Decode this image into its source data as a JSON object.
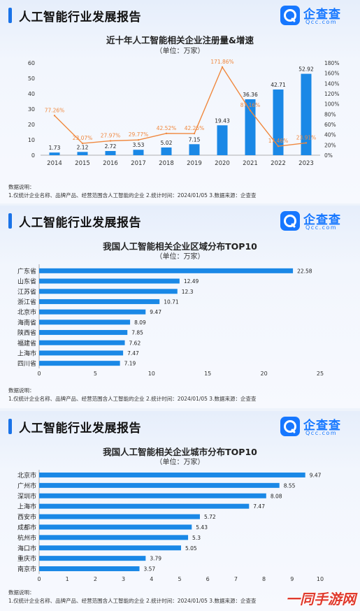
{
  "report_title": "人工智能行业发展报告",
  "logo": {
    "name": "企查查",
    "domain": "Qcc.com"
  },
  "notes": {
    "heading": "数据说明：",
    "line": "1.仅统计企业名称、品牌产品、经营范围含人工智能的企业  2.统计时间：2024/01/05   3.数据来源：企查查"
  },
  "watermark": "一同手游网",
  "colors": {
    "bar": "#1a88e6",
    "line": "#f0883e",
    "accent": "#1677ff"
  },
  "chart_data": [
    {
      "type": "bar+line",
      "title": "近十年人工智能相关企业注册量&增速",
      "unit": "（单位：万家）",
      "categories": [
        "2014",
        "2015",
        "2016",
        "2017",
        "2018",
        "2019",
        "2020",
        "2021",
        "2022",
        "2023"
      ],
      "series": [
        {
          "type": "bar",
          "values": [
            1.73,
            2.12,
            2.72,
            3.53,
            5.02,
            7.15,
            19.43,
            36.36,
            42.71,
            52.92
          ],
          "axis": "left"
        },
        {
          "type": "line",
          "values": [
            77.26,
            23.07,
            27.97,
            29.77,
            42.52,
            42.25,
            171.86,
            87.16,
            17.46,
            23.91
          ],
          "labels": [
            "77.26%",
            "23.07%",
            "27.97%",
            "29.77%",
            "42.52%",
            "42.25%",
            "171.86%",
            "87.16%",
            "17.46%",
            "23.91%"
          ],
          "axis": "right"
        }
      ],
      "ylim": [
        0,
        60
      ],
      "yticks": [
        "0",
        "10",
        "20",
        "30",
        "40",
        "50",
        "60"
      ],
      "y2lim": [
        0,
        180
      ],
      "y2ticks": [
        "0%",
        "20%",
        "40%",
        "60%",
        "80%",
        "100%",
        "120%",
        "140%",
        "160%",
        "180%"
      ]
    },
    {
      "type": "bar",
      "orientation": "horizontal",
      "title": "我国人工智能相关企业区域分布TOP10",
      "unit": "（单位：万家）",
      "categories": [
        "广东省",
        "山东省",
        "江苏省",
        "浙江省",
        "北京市",
        "海南省",
        "陕西省",
        "福建省",
        "上海市",
        "四川省"
      ],
      "values": [
        22.58,
        12.49,
        12.3,
        10.71,
        9.47,
        8.09,
        7.85,
        7.62,
        7.47,
        7.19
      ],
      "xlim": [
        0,
        25
      ],
      "xticks": [
        "0",
        "5",
        "10",
        "15",
        "20",
        "25"
      ]
    },
    {
      "type": "bar",
      "orientation": "horizontal",
      "title": "我国人工智能相关企业城市分布TOP10",
      "unit": "（单位：万家）",
      "categories": [
        "北京市",
        "广州市",
        "深圳市",
        "上海市",
        "西安市",
        "成都市",
        "杭州市",
        "海口市",
        "重庆市",
        "南京市"
      ],
      "values": [
        9.47,
        8.55,
        8.08,
        7.47,
        5.72,
        5.43,
        5.3,
        5.05,
        3.79,
        3.57
      ],
      "xlim": [
        0,
        10
      ],
      "xticks": [
        "0",
        "1",
        "2",
        "3",
        "4",
        "5",
        "6",
        "7",
        "8",
        "9",
        "10"
      ]
    }
  ]
}
